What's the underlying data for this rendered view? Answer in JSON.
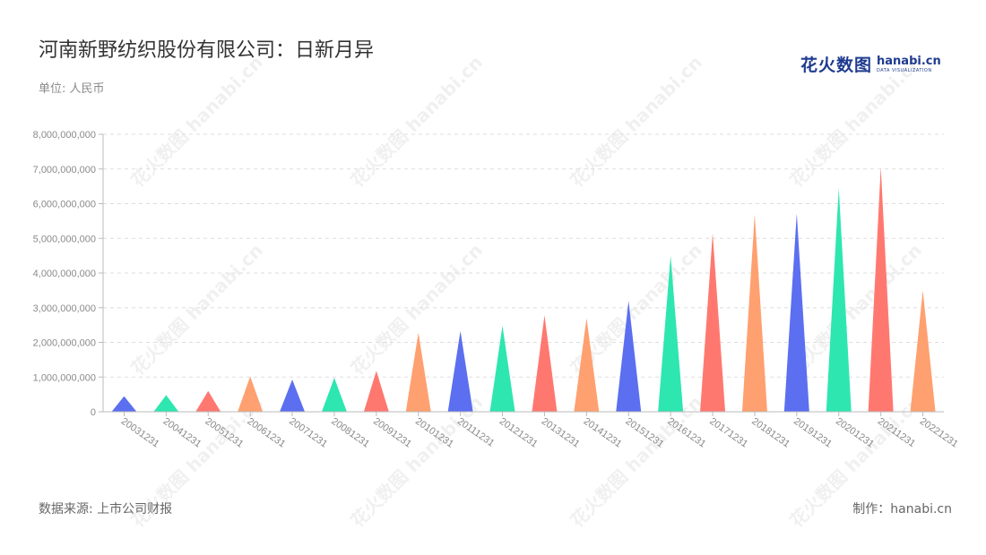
{
  "title": "河南新野纺织股份有限公司：日新月异",
  "unit_label": "单位: 人民币",
  "logo": {
    "cn": "花火数图",
    "en": "hanabi.cn",
    "sub": "DATA VISUALIZATION"
  },
  "source": "数据来源: 上市公司财报",
  "credit": "制作：hanabi.cn",
  "watermark": "花火数图 hanabi.cn",
  "chart_data": {
    "type": "bar",
    "bar_shape": "triangle",
    "categories": [
      "20031231",
      "20041231",
      "20051231",
      "20061231",
      "20071231",
      "20081231",
      "20091231",
      "20101231",
      "20111231",
      "20121231",
      "20131231",
      "20141231",
      "20151231",
      "20161231",
      "20171231",
      "20181231",
      "20191231",
      "20201231",
      "20211231",
      "20221231"
    ],
    "values": [
      450000000,
      480000000,
      600000000,
      1020000000,
      930000000,
      980000000,
      1180000000,
      2280000000,
      2330000000,
      2480000000,
      2780000000,
      2700000000,
      3200000000,
      4500000000,
      5150000000,
      5700000000,
      5720000000,
      6450000000,
      7050000000,
      3500000000
    ],
    "colors": [
      "#5b6ff0",
      "#2ee6b0",
      "#ff7870",
      "#ffa070",
      "#5b6ff0",
      "#2ee6b0",
      "#ff7870",
      "#ffa070",
      "#5b6ff0",
      "#2ee6b0",
      "#ff7870",
      "#ffa070",
      "#5b6ff0",
      "#2ee6b0",
      "#ff7870",
      "#ffa070",
      "#5b6ff0",
      "#2ee6b0",
      "#ff7870",
      "#ffa070"
    ],
    "ylim": [
      0,
      8000000000
    ],
    "yticks": [
      0,
      1000000000,
      2000000000,
      3000000000,
      4000000000,
      5000000000,
      6000000000,
      7000000000,
      8000000000
    ],
    "ytick_labels": [
      "0",
      "1,000,000,000",
      "2,000,000,000",
      "3,000,000,000",
      "4,000,000,000",
      "5,000,000,000",
      "6,000,000,000",
      "7,000,000,000",
      "8,000,000,000"
    ],
    "grid": true,
    "legend": false
  }
}
